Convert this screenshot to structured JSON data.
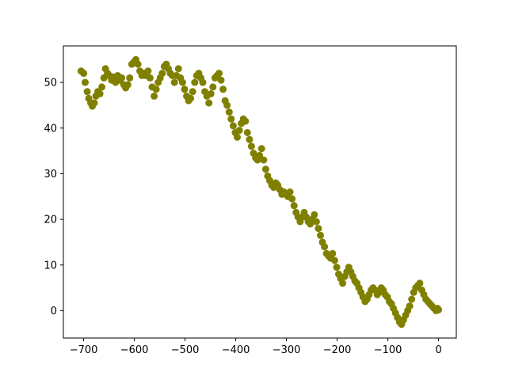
{
  "chart_data": {
    "type": "scatter",
    "title": "",
    "xlabel": "",
    "ylabel": "",
    "xlim": [
      -740,
      35
    ],
    "ylim": [
      -6,
      58
    ],
    "grid": false,
    "marker_color": "#808000",
    "x_ticks": [
      -700,
      -600,
      -500,
      -400,
      -300,
      -200,
      -100,
      0
    ],
    "x_tick_labels": [
      "−700",
      "−600",
      "−500",
      "−400",
      "−300",
      "−200",
      "−100",
      "0"
    ],
    "y_ticks": [
      0,
      10,
      20,
      30,
      40,
      50
    ],
    "y_tick_labels": [
      "0",
      "10",
      "20",
      "30",
      "40",
      "50"
    ],
    "series": [
      {
        "points": [
          [
            -705,
            52.5
          ],
          [
            -700,
            52
          ],
          [
            -697,
            50
          ],
          [
            -693,
            48
          ],
          [
            -690,
            46.5
          ],
          [
            -686,
            45.5
          ],
          [
            -683,
            44.8
          ],
          [
            -679,
            45.5
          ],
          [
            -676,
            47
          ],
          [
            -672,
            48
          ],
          [
            -668,
            47.5
          ],
          [
            -664,
            49
          ],
          [
            -660,
            51
          ],
          [
            -657,
            53
          ],
          [
            -653,
            52
          ],
          [
            -649,
            51.5
          ],
          [
            -645,
            50.5
          ],
          [
            -641,
            51.2
          ],
          [
            -637,
            50
          ],
          [
            -633,
            51.5
          ],
          [
            -629,
            50.5
          ],
          [
            -625,
            51
          ],
          [
            -621,
            49.5
          ],
          [
            -617,
            48.8
          ],
          [
            -613,
            49.5
          ],
          [
            -609,
            51
          ],
          [
            -605,
            54
          ],
          [
            -601,
            54.5
          ],
          [
            -597,
            55
          ],
          [
            -593,
            54
          ],
          [
            -589,
            52.5
          ],
          [
            -585,
            51.5
          ],
          [
            -581,
            52
          ],
          [
            -577,
            51.5
          ],
          [
            -573,
            52.5
          ],
          [
            -569,
            51
          ],
          [
            -565,
            49
          ],
          [
            -561,
            47
          ],
          [
            -557,
            48.5
          ],
          [
            -553,
            50
          ],
          [
            -549,
            51
          ],
          [
            -545,
            52
          ],
          [
            -541,
            53.5
          ],
          [
            -537,
            54
          ],
          [
            -533,
            53
          ],
          [
            -529,
            52
          ],
          [
            -525,
            51.5
          ],
          [
            -521,
            50
          ],
          [
            -517,
            51.5
          ],
          [
            -513,
            53
          ],
          [
            -509,
            51
          ],
          [
            -505,
            50
          ],
          [
            -501,
            48.5
          ],
          [
            -497,
            47
          ],
          [
            -493,
            46
          ],
          [
            -489,
            46.5
          ],
          [
            -485,
            48
          ],
          [
            -481,
            50
          ],
          [
            -477,
            51.5
          ],
          [
            -473,
            52
          ],
          [
            -469,
            51
          ],
          [
            -465,
            50
          ],
          [
            -461,
            48
          ],
          [
            -457,
            47
          ],
          [
            -453,
            45.5
          ],
          [
            -449,
            47.5
          ],
          [
            -445,
            49
          ],
          [
            -441,
            51
          ],
          [
            -437,
            51.5
          ],
          [
            -433,
            52
          ],
          [
            -429,
            50.5
          ],
          [
            -425,
            48.5
          ],
          [
            -421,
            46
          ],
          [
            -417,
            45
          ],
          [
            -413,
            43.5
          ],
          [
            -409,
            42
          ],
          [
            -405,
            40.5
          ],
          [
            -401,
            39
          ],
          [
            -397,
            38
          ],
          [
            -393,
            39.5
          ],
          [
            -389,
            41
          ],
          [
            -385,
            42
          ],
          [
            -381,
            41.5
          ],
          [
            -377,
            39
          ],
          [
            -373,
            37.5
          ],
          [
            -369,
            36
          ],
          [
            -365,
            34.5
          ],
          [
            -361,
            33.5
          ],
          [
            -357,
            33
          ],
          [
            -353,
            34
          ],
          [
            -349,
            35.5
          ],
          [
            -345,
            33
          ],
          [
            -341,
            31
          ],
          [
            -337,
            29.5
          ],
          [
            -333,
            28.5
          ],
          [
            -329,
            27.5
          ],
          [
            -325,
            27
          ],
          [
            -321,
            28
          ],
          [
            -317,
            27.5
          ],
          [
            -313,
            26.5
          ],
          [
            -309,
            25.5
          ],
          [
            -305,
            26
          ],
          [
            -301,
            25.5
          ],
          [
            -297,
            25
          ],
          [
            -293,
            26
          ],
          [
            -289,
            24.5
          ],
          [
            -285,
            23
          ],
          [
            -281,
            21.5
          ],
          [
            -277,
            20.5
          ],
          [
            -273,
            19.5
          ],
          [
            -269,
            20.5
          ],
          [
            -265,
            21.5
          ],
          [
            -261,
            20.5
          ],
          [
            -257,
            19.5
          ],
          [
            -253,
            19
          ],
          [
            -249,
            20
          ],
          [
            -245,
            21
          ],
          [
            -241,
            19.5
          ],
          [
            -237,
            18
          ],
          [
            -233,
            16.5
          ],
          [
            -229,
            15
          ],
          [
            -225,
            14
          ],
          [
            -221,
            12.5
          ],
          [
            -217,
            12
          ],
          [
            -213,
            11.5
          ],
          [
            -209,
            12.5
          ],
          [
            -205,
            11
          ],
          [
            -201,
            9.5
          ],
          [
            -197,
            8
          ],
          [
            -193,
            7
          ],
          [
            -189,
            6
          ],
          [
            -185,
            7.5
          ],
          [
            -181,
            8.5
          ],
          [
            -177,
            9.5
          ],
          [
            -173,
            8.5
          ],
          [
            -169,
            7.5
          ],
          [
            -165,
            6.5
          ],
          [
            -161,
            6
          ],
          [
            -157,
            5
          ],
          [
            -153,
            4
          ],
          [
            -149,
            3
          ],
          [
            -145,
            2
          ],
          [
            -141,
            2.5
          ],
          [
            -137,
            3.5
          ],
          [
            -133,
            4.5
          ],
          [
            -129,
            5
          ],
          [
            -125,
            4.5
          ],
          [
            -121,
            3.5
          ],
          [
            -117,
            4
          ],
          [
            -113,
            5
          ],
          [
            -109,
            4.5
          ],
          [
            -105,
            3.5
          ],
          [
            -101,
            3
          ],
          [
            -97,
            2
          ],
          [
            -93,
            1.5
          ],
          [
            -89,
            0.5
          ],
          [
            -85,
            -0.5
          ],
          [
            -81,
            -1.5
          ],
          [
            -77,
            -2.5
          ],
          [
            -73,
            -3
          ],
          [
            -69,
            -2
          ],
          [
            -65,
            -1
          ],
          [
            -61,
            0
          ],
          [
            -57,
            1
          ],
          [
            -53,
            2.5
          ],
          [
            -49,
            4
          ],
          [
            -45,
            5
          ],
          [
            -41,
            5.5
          ],
          [
            -37,
            6
          ],
          [
            -33,
            4.5
          ],
          [
            -29,
            3.5
          ],
          [
            -25,
            2.5
          ],
          [
            -21,
            2
          ],
          [
            -17,
            1.5
          ],
          [
            -13,
            1
          ],
          [
            -9,
            0.5
          ],
          [
            -5,
            0
          ],
          [
            -2,
            0.5
          ],
          [
            0,
            0.2
          ]
        ]
      }
    ]
  }
}
